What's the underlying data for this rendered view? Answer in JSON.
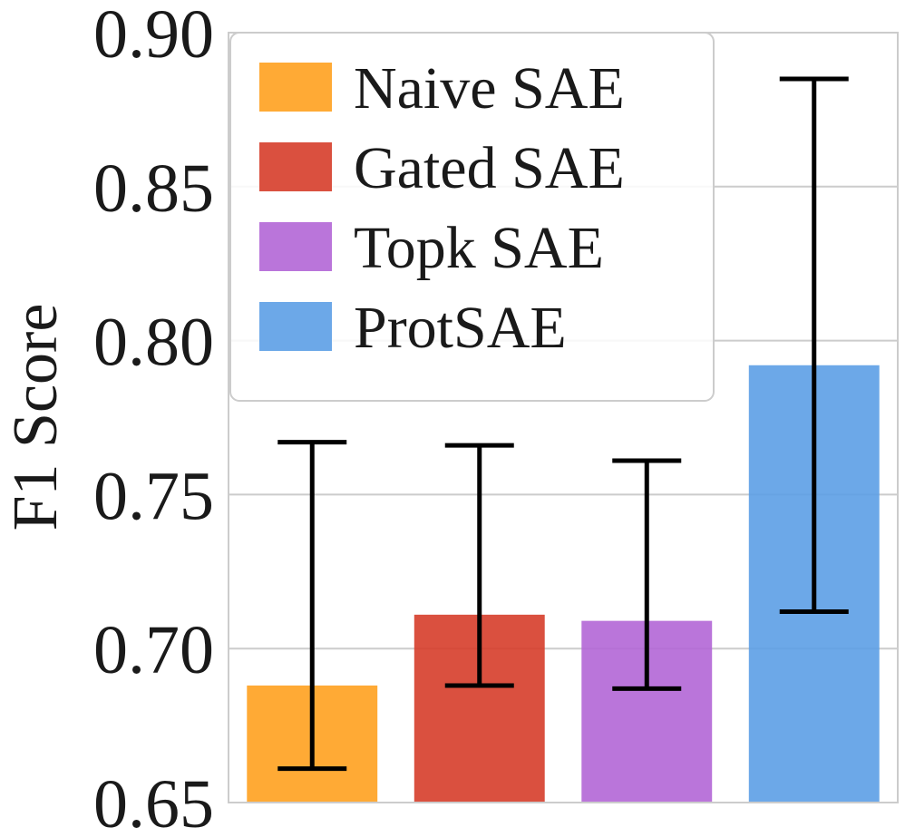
{
  "chart_data": {
    "type": "bar",
    "title": "",
    "xlabel": "",
    "ylabel": "F1 Score",
    "ylim": [
      0.65,
      0.9
    ],
    "yticks": [
      0.65,
      0.7,
      0.75,
      0.8,
      0.85,
      0.9
    ],
    "ytick_labels": [
      "0.65",
      "0.70",
      "0.75",
      "0.80",
      "0.85",
      "0.90"
    ],
    "grid": true,
    "legend_position": "top-left",
    "categories": [
      "Naive SAE",
      "Gated SAE",
      "Topk SAE",
      "ProtSAE"
    ],
    "values": [
      0.688,
      0.711,
      0.709,
      0.792
    ],
    "error_low": [
      0.661,
      0.688,
      0.687,
      0.712
    ],
    "error_high": [
      0.767,
      0.766,
      0.761,
      0.885
    ],
    "colors": [
      "#ffa11f",
      "#d63d2a",
      "#b266d6",
      "#5c9ee6"
    ]
  }
}
